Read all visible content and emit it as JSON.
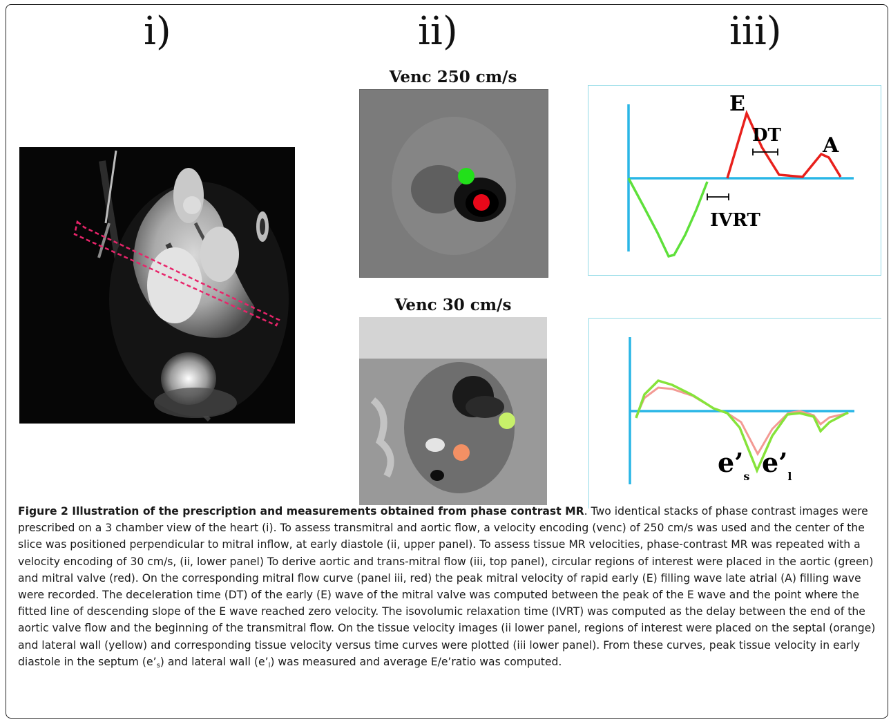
{
  "panel_labels": {
    "i": "i)",
    "ii": "ii)",
    "iii": "iii)"
  },
  "venc": {
    "upper": "Venc 250 cm/s",
    "lower": "Venc 30 cm/s"
  },
  "mitral_chart": {
    "label_E": "E",
    "label_DT": "DT",
    "label_A": "A",
    "label_IVRT": "IVRT",
    "colors": {
      "axis": "#29b6e6",
      "mitral": "#e8201c",
      "aortic": "#5ee03a"
    }
  },
  "tissue_chart": {
    "label_e": "e’",
    "sub_s": "s",
    "sub_l": "l",
    "colors": {
      "axis": "#29b6e6",
      "septal": "#f39a94",
      "lateral": "#86e33a"
    }
  },
  "roi_colors": {
    "aortic": "#22e01a",
    "mitral": "#e8081a",
    "lateral": "#c7f06a",
    "septal": "#f39064"
  },
  "caption": {
    "title": "Figure 2 Illustration of the prescription and measurements obtained from phase contrast MR",
    "p1": ". Two identical stacks of phase contrast images were prescribed on a 3 chamber view of the heart (i). To assess transmitral and aortic flow, a velocity encoding (venc) of 250 cm/s was used and the center of the slice was positioned perpendicular to mitral inflow, at early diastole (ii, upper panel). To assess tissue MR velocities, phase-contrast MR was repeated with a velocity encoding of 30 cm/s, (ii, lower panel) To derive aortic and trans-mitral flow (iii, top panel), circular regions of interest were placed in the aortic (green) and mitral valve (red). On the corresponding mitral flow curve (panel iii, red) the peak mitral velocity of rapid early (E) filling wave late atrial (A) filling wave were recorded. The deceleration time (DT) of the early (E) wave of the mitral valve was computed between the peak of the E wave and the point where the fitted line of descending slope of the E wave reached zero velocity. The isovolumic relaxation time (IVRT) was computed as the delay between the end of the aortic valve flow and the beginning of the transmitral flow. On the tissue velocity images (ii lower panel, regions of interest were placed on the septal (orange) and lateral wall (yellow) and corresponding tissue velocity versus time curves were plotted (iii lower panel). From these curves, peak tissue velocity in early diastole in the septum (e’",
    "sub_s": "s",
    "p2": ") and lateral wall (e’",
    "sub_l": "l",
    "p3": ") was measured and average E/e’ratio was computed."
  }
}
